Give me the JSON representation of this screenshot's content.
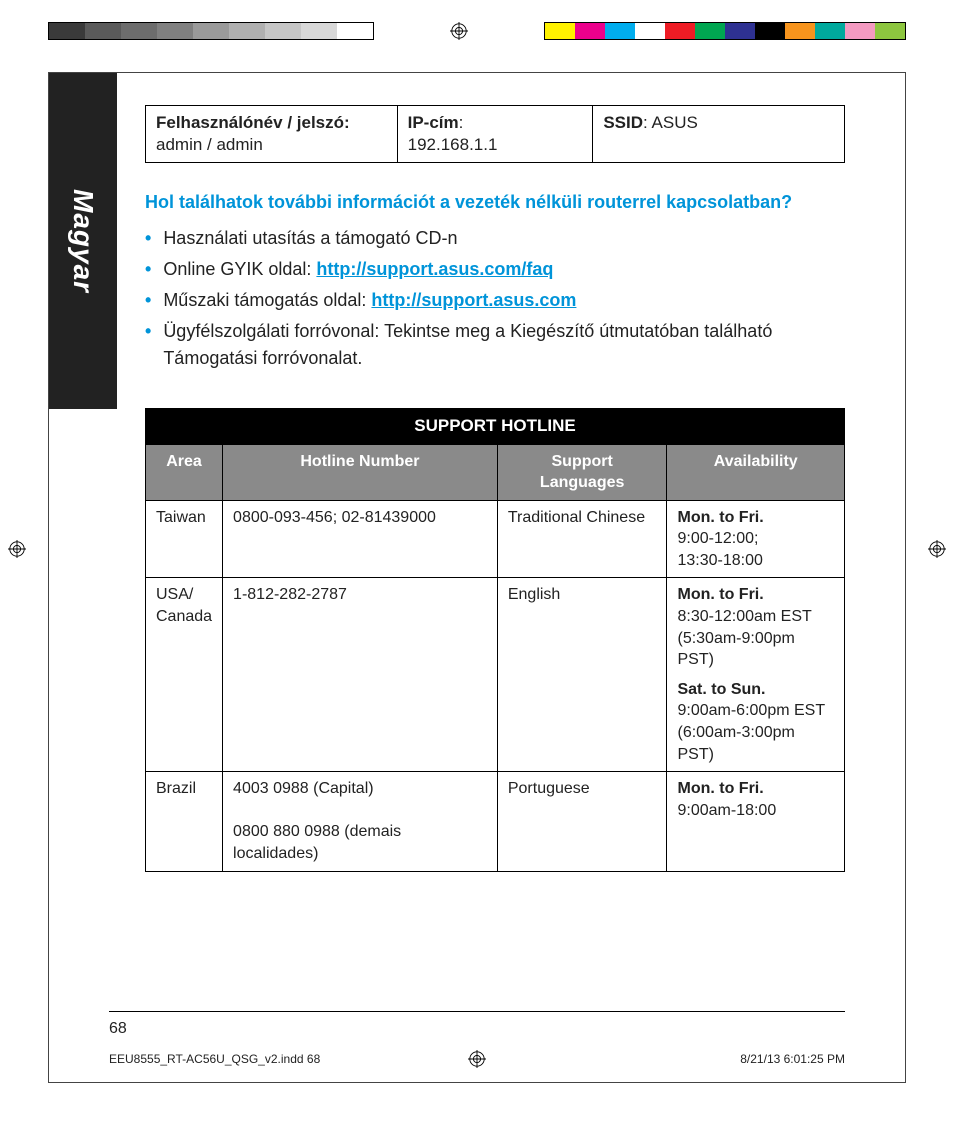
{
  "print": {
    "gray_swatches": [
      "#3a3a3a",
      "#5a5a5a",
      "#6d6d6d",
      "#808080",
      "#9a9a9a",
      "#b0b0b0",
      "#c6c6c6",
      "#d8d8d8",
      "#ffffff"
    ],
    "color_swatches": [
      "#fff200",
      "#ec008c",
      "#00adee",
      "#ffffff",
      "#ee1c25",
      "#00a651",
      "#2e3192",
      "#000000",
      "#f7941d",
      "#00a99d",
      "#f49ac1",
      "#8dc63f"
    ],
    "foot_file": "EEU8555_RT-AC56U_QSG_v2.indd   68",
    "foot_date": "8/21/13   6:01:25 PM"
  },
  "side_tab": "Magyar",
  "creds": {
    "c1_bold": "Felhasználónév / jelszó:",
    "c1_val": "admin / admin",
    "c2_bold": "IP-cím",
    "c2_val": "192.168.1.1",
    "c3_bold": "SSID",
    "c3_val": "ASUS"
  },
  "question": "Hol találhatok további információt a vezeték nélküli routerrel kapcsolatban?",
  "bullets": {
    "b1": "Használati utasítás a támogató CD-n",
    "b2_pre": "Online GYIK oldal: ",
    "b2_link": "http://support.asus.com/faq",
    "b3_pre": "Műszaki támogatás oldal: ",
    "b3_link": "http://support.asus.com",
    "b4": "Ügyfélszolgálati forróvonal: Tekintse meg a Kiegészítő útmutatóban található Támogatási forróvonalat."
  },
  "hotline": {
    "title": "SUPPORT HOTLINE",
    "cols": {
      "area": "Area",
      "number": "Hotline Number",
      "lang": "Support Languages",
      "avail": "Availability"
    },
    "rows": [
      {
        "area": "Taiwan",
        "number": "0800-093-456; 02-81439000",
        "lang": "Traditional Chinese",
        "avail": [
          {
            "title": "Mon. to Fri.",
            "lines": [
              "9:00-12:00;",
              "13:30-18:00"
            ]
          }
        ]
      },
      {
        "area": "USA/\nCanada",
        "number": "1-812-282-2787",
        "lang": "English",
        "avail": [
          {
            "title": "Mon. to Fri.",
            "lines": [
              "8:30-12:00am EST",
              "(5:30am-9:00pm PST)"
            ]
          },
          {
            "title": "Sat. to Sun.",
            "lines": [
              "9:00am-6:00pm EST",
              "(6:00am-3:00pm PST)"
            ]
          }
        ]
      },
      {
        "area": "Brazil",
        "number": "4003 0988 (Capital)\n\n0800 880 0988 (demais localidades)",
        "lang": "Portuguese",
        "avail": [
          {
            "title": "Mon. to Fri.",
            "lines": [
              "9:00am-18:00"
            ]
          }
        ]
      }
    ]
  },
  "page_number": "68"
}
